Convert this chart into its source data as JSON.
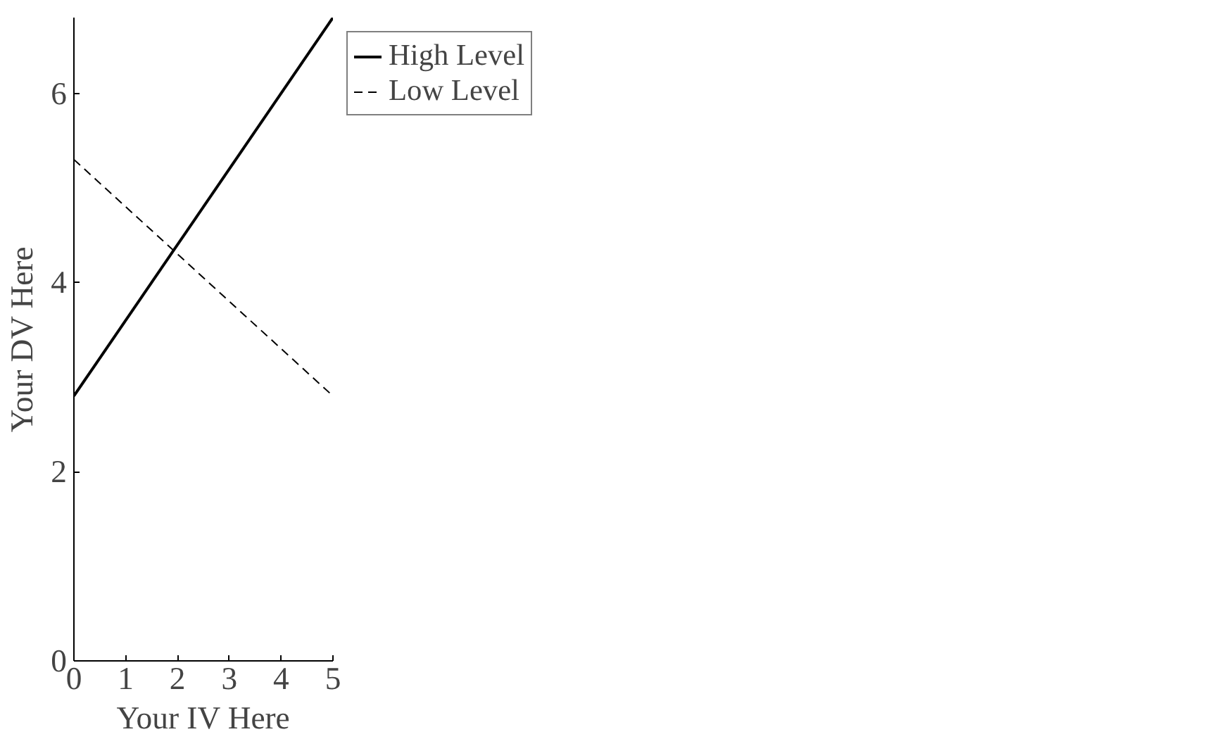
{
  "chart_data": {
    "type": "line",
    "xlabel": "Your IV Here",
    "ylabel": "Your DV Here",
    "x": [
      0,
      5
    ],
    "series": [
      {
        "name": "High Level",
        "color": "#000000",
        "values": [
          2.8,
          6.8
        ],
        "line_style": "solid"
      },
      {
        "name": "Low Level",
        "color": "#000000",
        "values": [
          5.3,
          2.8
        ],
        "line_style": "dashed"
      }
    ],
    "xlim": [
      0,
      5
    ],
    "ylim": [
      0,
      6.8
    ],
    "xticks": [
      0,
      1,
      2,
      3,
      4,
      5
    ],
    "yticks": [
      0,
      2,
      4,
      6
    ],
    "grid": false,
    "legend": "top right",
    "marker": "none"
  }
}
